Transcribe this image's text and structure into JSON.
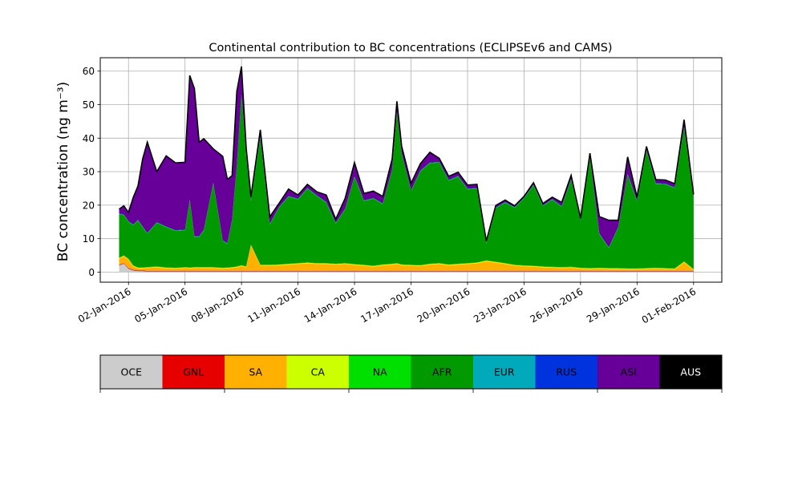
{
  "chart_data": {
    "type": "area",
    "stacked": true,
    "title": "Continental contribution to BC concentrations (ECLIPSEv6 and CAMS)",
    "xlabel": "",
    "ylabel": "BC concentration (ng m⁻³)",
    "ylim": [
      -3,
      64
    ],
    "yticks": [
      0,
      10,
      20,
      30,
      40,
      50,
      60
    ],
    "xlim": [
      "2015-12-31T12:00",
      "2016-02-02T12:00"
    ],
    "xticks": [
      "02-Jan-2016",
      "05-Jan-2016",
      "08-Jan-2016",
      "11-Jan-2016",
      "14-Jan-2016",
      "17-Jan-2016",
      "20-Jan-2016",
      "23-Jan-2016",
      "26-Jan-2016",
      "29-Jan-2016",
      "01-Feb-2016"
    ],
    "grid": true,
    "total_line_color": "#000000",
    "categories": [
      "OCE",
      "GNL",
      "SA",
      "CA",
      "NA",
      "AFR",
      "EUR",
      "RUS",
      "ASI",
      "AUS"
    ],
    "colors": [
      "#cccccc",
      "#e60000",
      "#ffb000",
      "#ccff00",
      "#00e000",
      "#009900",
      "#00aabb",
      "#0033dd",
      "#660099",
      "#000000"
    ],
    "x": [
      "2016-01-01T12:00",
      "2016-01-01T18:00",
      "2016-01-02T00:00",
      "2016-01-02T06:00",
      "2016-01-02T12:00",
      "2016-01-02T18:00",
      "2016-01-03T00:00",
      "2016-01-03T12:00",
      "2016-01-04T00:00",
      "2016-01-04T12:00",
      "2016-01-05T00:00",
      "2016-01-05T06:00",
      "2016-01-05T12:00",
      "2016-01-05T18:00",
      "2016-01-06T00:00",
      "2016-01-06T12:00",
      "2016-01-07T00:00",
      "2016-01-07T06:00",
      "2016-01-07T12:00",
      "2016-01-07T18:00",
      "2016-01-08T00:00",
      "2016-01-08T06:00",
      "2016-01-08T12:00",
      "2016-01-09T00:00",
      "2016-01-09T12:00",
      "2016-01-10T00:00",
      "2016-01-10T12:00",
      "2016-01-11T00:00",
      "2016-01-11T12:00",
      "2016-01-12T00:00",
      "2016-01-12T12:00",
      "2016-01-13T00:00",
      "2016-01-13T12:00",
      "2016-01-14T00:00",
      "2016-01-14T12:00",
      "2016-01-15T00:00",
      "2016-01-15T12:00",
      "2016-01-16T00:00",
      "2016-01-16T06:00",
      "2016-01-16T12:00",
      "2016-01-17T00:00",
      "2016-01-17T12:00",
      "2016-01-18T00:00",
      "2016-01-18T12:00",
      "2016-01-19T00:00",
      "2016-01-19T12:00",
      "2016-01-20T00:00",
      "2016-01-20T12:00",
      "2016-01-21T00:00",
      "2016-01-21T12:00",
      "2016-01-22T00:00",
      "2016-01-22T12:00",
      "2016-01-23T00:00",
      "2016-01-23T12:00",
      "2016-01-24T00:00",
      "2016-01-24T12:00",
      "2016-01-25T00:00",
      "2016-01-25T12:00",
      "2016-01-26T00:00",
      "2016-01-26T12:00",
      "2016-01-27T00:00",
      "2016-01-27T12:00",
      "2016-01-28T00:00",
      "2016-01-28T12:00",
      "2016-01-29T00:00",
      "2016-01-29T12:00",
      "2016-01-30T00:00",
      "2016-01-30T12:00",
      "2016-01-31T00:00",
      "2016-01-31T12:00",
      "2016-02-01T00:00"
    ],
    "series": [
      {
        "name": "OCE",
        "values": [
          2,
          2.5,
          1,
          0.5,
          0.3,
          0.3,
          0.2,
          0.2,
          0.2,
          0.2,
          0.2,
          0.2,
          0.2,
          0.2,
          0.2,
          0.2,
          0.2,
          0.2,
          0.2,
          0.2,
          0.2,
          0.2,
          0.2,
          0.2,
          0.2,
          0.2,
          0.2,
          0.2,
          0.2,
          0.2,
          0.2,
          0.2,
          0.2,
          0.2,
          0.2,
          0.2,
          0.2,
          0.2,
          0.2,
          0.2,
          0.2,
          0.2,
          0.2,
          0.2,
          0.2,
          0.2,
          0.2,
          0.2,
          0.2,
          0.2,
          0.2,
          0.2,
          0.2,
          0.2,
          0.2,
          0.2,
          0.2,
          0.2,
          0.2,
          0.2,
          0.2,
          0.2,
          0.2,
          0.2,
          0.2,
          0.2,
          0.2,
          0.2,
          0.2,
          0.2,
          0.2
        ]
      },
      {
        "name": "GNL",
        "values": [
          0.2,
          0.2,
          0.2,
          0.2,
          0.2,
          0.2,
          0.2,
          0.2,
          0.2,
          0.2,
          0.2,
          0.2,
          0.2,
          0.2,
          0.2,
          0.2,
          0.2,
          0.2,
          0.2,
          0.2,
          0.2,
          0.2,
          0.2,
          0.2,
          0.2,
          0.2,
          0.2,
          0.2,
          0.2,
          0.2,
          0.2,
          0.2,
          0.2,
          0.2,
          0.2,
          0.2,
          0.2,
          0.2,
          0.2,
          0.2,
          0.2,
          0.2,
          0.2,
          0.2,
          0.2,
          0.2,
          0.2,
          0.2,
          0.2,
          0.2,
          0.2,
          0.2,
          0.2,
          0.2,
          0.2,
          0.2,
          0.2,
          0.2,
          0.2,
          0.2,
          0.2,
          0.2,
          0.2,
          0.2,
          0.2,
          0.2,
          0.2,
          0.2,
          0.2,
          0.2,
          0.2
        ]
      },
      {
        "name": "SA",
        "values": [
          1.8,
          2,
          2.5,
          1,
          0.6,
          0.6,
          0.8,
          1,
          0.7,
          0.6,
          0.8,
          0.7,
          0.8,
          0.8,
          0.8,
          0.8,
          0.6,
          0.7,
          0.8,
          1,
          1.4,
          1,
          7.5,
          1.5,
          1.5,
          1.6,
          1.8,
          2,
          2.2,
          2,
          2,
          1.8,
          2,
          1.7,
          1.5,
          1.2,
          1.6,
          1.8,
          2,
          1.6,
          1.5,
          1.4,
          1.8,
          2,
          1.6,
          1.8,
          2,
          2.2,
          2.8,
          2.4,
          2,
          1.5,
          1.3,
          1.2,
          1,
          0.9,
          0.8,
          0.9,
          0.6,
          0.5,
          0.6,
          0.5,
          0.5,
          0.4,
          0.4,
          0.5,
          0.6,
          0.5,
          0.4,
          2.5,
          0.2
        ]
      },
      {
        "name": "CA",
        "values": [
          0.2,
          0.2,
          0.2,
          0.2,
          0.2,
          0.2,
          0.2,
          0.2,
          0.2,
          0.2,
          0.2,
          0.2,
          0.2,
          0.2,
          0.2,
          0.2,
          0.2,
          0.2,
          0.2,
          0.2,
          0.2,
          0.2,
          0.2,
          0.2,
          0.2,
          0.2,
          0.2,
          0.2,
          0.2,
          0.2,
          0.2,
          0.2,
          0.2,
          0.2,
          0.2,
          0.2,
          0.2,
          0.2,
          0.2,
          0.2,
          0.2,
          0.2,
          0.2,
          0.2,
          0.2,
          0.2,
          0.2,
          0.2,
          0.2,
          0.2,
          0.2,
          0.2,
          0.2,
          0.2,
          0.2,
          0.2,
          0.2,
          0.2,
          0.2,
          0.2,
          0.2,
          0.2,
          0.2,
          0.2,
          0.2,
          0.2,
          0.2,
          0.2,
          0.2,
          0.2,
          0.2
        ]
      },
      {
        "name": "NA",
        "values": [
          0.1,
          0.1,
          0.1,
          0.1,
          0.1,
          0.1,
          0.1,
          0.1,
          0.1,
          0.1,
          0.1,
          0.1,
          0.1,
          0.1,
          0.1,
          0.1,
          0.1,
          0.1,
          0.1,
          0.1,
          0.1,
          0.1,
          0.1,
          0.1,
          0.1,
          0.1,
          0.1,
          0.1,
          0.1,
          0.1,
          0.1,
          0.1,
          0.1,
          0.1,
          0.1,
          0.1,
          0.1,
          0.1,
          0.1,
          0.1,
          0.1,
          0.1,
          0.1,
          0.1,
          0.1,
          0.1,
          0.1,
          0.1,
          0.1,
          0.1,
          0.1,
          0.1,
          0.1,
          0.1,
          0.1,
          0.1,
          0.1,
          0.1,
          0.1,
          0.1,
          0.1,
          0.1,
          0.1,
          0.1,
          0.1,
          0.1,
          0.1,
          0.1,
          0.1,
          0.1,
          0.1
        ]
      },
      {
        "name": "AFR",
        "values": [
          13,
          12,
          11,
          12,
          14,
          12,
          10,
          13,
          12,
          11,
          11,
          20,
          9,
          9,
          11,
          25,
          8,
          7,
          14,
          30,
          51,
          33,
          13,
          38,
          12,
          17,
          20,
          19,
          22,
          20,
          18,
          12,
          16,
          26,
          19,
          20,
          18,
          28,
          45,
          33,
          22,
          28,
          30,
          30,
          25,
          26,
          22,
          22,
          5,
          16,
          18,
          17,
          20,
          24,
          18,
          20,
          18,
          26,
          14,
          33,
          10,
          6,
          12,
          28,
          20,
          35,
          25,
          25,
          24,
          40,
          21
        ]
      },
      {
        "name": "EUR",
        "values": [
          0.1,
          0.1,
          0.1,
          0.1,
          0.1,
          0.1,
          0.1,
          0.1,
          0.1,
          0.1,
          0.1,
          0.1,
          0.1,
          0.1,
          0.1,
          0.1,
          0.1,
          0.1,
          0.1,
          0.1,
          0.1,
          0.1,
          0.1,
          0.1,
          0.1,
          0.1,
          0.1,
          0.1,
          0.1,
          0.1,
          0.1,
          0.1,
          0.1,
          0.1,
          0.1,
          0.1,
          0.1,
          0.1,
          0.1,
          0.1,
          0.1,
          0.1,
          0.1,
          0.1,
          0.1,
          0.1,
          0.1,
          0.1,
          0.1,
          0.1,
          0.1,
          0.1,
          0.1,
          0.1,
          0.1,
          0.1,
          0.1,
          0.1,
          0.1,
          0.1,
          0.1,
          0.1,
          0.1,
          0.1,
          0.1,
          0.1,
          0.1,
          0.1,
          0.1,
          0.1,
          0.1
        ]
      },
      {
        "name": "RUS",
        "values": [
          0.1,
          0.1,
          0.1,
          0.1,
          0.1,
          0.1,
          0.1,
          0.1,
          0.1,
          0.1,
          0.1,
          0.1,
          0.1,
          0.1,
          0.1,
          0.1,
          0.1,
          0.1,
          0.1,
          0.1,
          0.1,
          0.1,
          0.1,
          0.1,
          0.1,
          0.1,
          0.1,
          0.1,
          0.1,
          0.1,
          0.1,
          0.1,
          0.1,
          0.1,
          0.1,
          0.1,
          0.1,
          0.1,
          0.1,
          0.1,
          0.1,
          0.1,
          0.1,
          0.1,
          0.1,
          0.1,
          0.1,
          0.1,
          0.1,
          0.1,
          0.1,
          0.1,
          0.1,
          0.1,
          0.1,
          0.1,
          0.1,
          0.1,
          0.1,
          0.1,
          0.1,
          0.1,
          0.1,
          0.1,
          0.1,
          0.1,
          0.1,
          0.1,
          0.1,
          0.1,
          0.1
        ]
      },
      {
        "name": "ASI",
        "values": [
          1.2,
          2.5,
          2.5,
          8,
          10,
          20,
          27,
          15,
          21,
          20,
          20,
          37,
          44,
          28,
          27,
          10,
          25,
          19,
          13,
          22,
          8,
          2,
          1,
          2,
          2,
          1,
          2,
          1,
          1,
          1,
          2,
          1,
          3,
          4,
          2,
          2,
          2,
          3,
          3,
          2,
          2,
          2,
          3,
          1,
          1,
          1,
          1,
          1,
          0.5,
          0.5,
          0.5,
          0.3,
          0.3,
          0.5,
          0.5,
          0.5,
          1,
          1,
          0.5,
          1,
          5,
          8,
          2,
          5,
          1,
          1,
          1,
          1,
          1,
          2,
          1
        ]
      },
      {
        "name": "AUS",
        "values": [
          0.1,
          0.1,
          0.1,
          0.1,
          0.1,
          0.1,
          0.1,
          0.1,
          0.1,
          0.1,
          0.1,
          0.1,
          0.1,
          0.1,
          0.1,
          0.1,
          0.1,
          0.1,
          0.1,
          0.1,
          0.1,
          0.1,
          0.1,
          0.1,
          0.1,
          0.1,
          0.1,
          0.1,
          0.1,
          0.1,
          0.1,
          0.1,
          0.1,
          0.1,
          0.1,
          0.1,
          0.1,
          0.1,
          0.1,
          0.1,
          0.1,
          0.1,
          0.1,
          0.1,
          0.1,
          0.1,
          0.1,
          0.1,
          0.1,
          0.1,
          0.1,
          0.1,
          0.1,
          0.1,
          0.1,
          0.1,
          0.1,
          0.1,
          0.1,
          0.1,
          0.1,
          0.1,
          0.1,
          0.1,
          0.1,
          0.1,
          0.1,
          0.1,
          0.1,
          0.1,
          0.1
        ]
      }
    ]
  }
}
